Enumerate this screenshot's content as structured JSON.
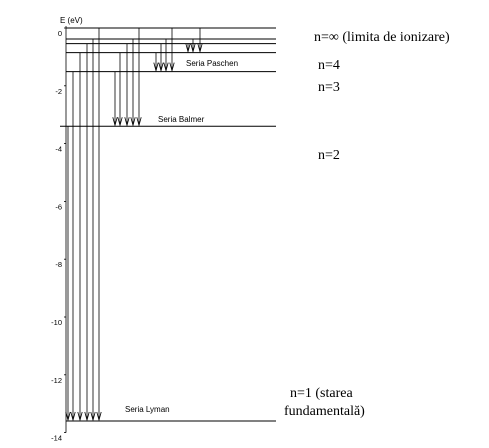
{
  "axis": {
    "label": "E (eV)",
    "ticks": [
      {
        "value": 0,
        "label": "0"
      },
      {
        "value": -2,
        "label": "-2"
      },
      {
        "value": -4,
        "label": "-4"
      },
      {
        "value": -6,
        "label": "-6"
      },
      {
        "value": -8,
        "label": "-8"
      },
      {
        "value": -10,
        "label": "-10"
      },
      {
        "value": -12,
        "label": "-12"
      },
      {
        "value": -14,
        "label": "-14"
      }
    ]
  },
  "levels": [
    {
      "n": "inf",
      "energy": 0,
      "label": "n=∞ (limita de ionizare)"
    },
    {
      "n": 6,
      "energy": -0.38
    },
    {
      "n": 5,
      "energy": -0.54
    },
    {
      "n": 4,
      "energy": -0.85,
      "label": "n=4"
    },
    {
      "n": 3,
      "energy": -1.51,
      "label": "n=3"
    },
    {
      "n": 2,
      "energy": -3.4,
      "label": "n=2"
    },
    {
      "n": 1,
      "energy": -13.6,
      "label_line1": "n=1 (starea",
      "label_line2": "fundamentală)"
    }
  ],
  "series": {
    "lyman": "Seria Lyman",
    "balmer": "Seria Balmer",
    "paschen": "Seria Paschen"
  },
  "colors": {
    "line": "#000000",
    "background": "#ffffff"
  }
}
